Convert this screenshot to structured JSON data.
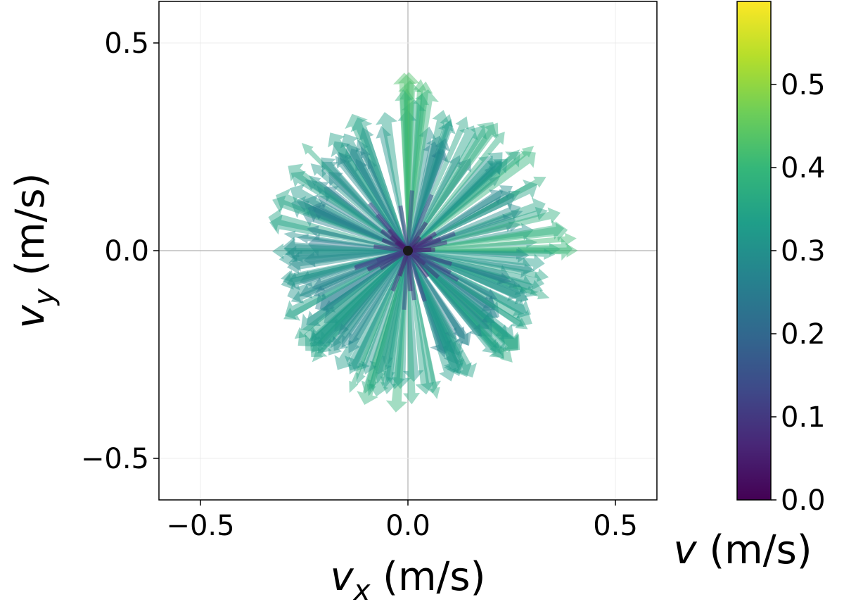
{
  "chart_data": {
    "type": "scatter",
    "title": "",
    "xlabel": {
      "base": "v",
      "sub": "x",
      "rest": " (m/s)"
    },
    "ylabel": {
      "base": "v",
      "sub": "y",
      "rest": " (m/s)"
    },
    "xlim": [
      -0.6,
      0.6
    ],
    "ylim": [
      -0.6,
      0.6
    ],
    "xticks": [
      {
        "value": -0.5,
        "label": "−0.5"
      },
      {
        "value": 0.0,
        "label": "0.0"
      },
      {
        "value": 0.5,
        "label": "0.5"
      }
    ],
    "yticks": [
      {
        "value": 0.5,
        "label": "0.5"
      },
      {
        "value": 0.0,
        "label": "0.0"
      },
      {
        "value": -0.5,
        "label": "−0.5"
      }
    ],
    "grid": true,
    "origin_marker": {
      "x": 0.0,
      "y": 0.0,
      "color": "#1a1a1a"
    },
    "colorbar": {
      "colormap": "viridis",
      "range": [
        0.0,
        0.6
      ],
      "ticks": [
        {
          "value": 0.0,
          "label": "0.0"
        },
        {
          "value": 0.1,
          "label": "0.1"
        },
        {
          "value": 0.2,
          "label": "0.2"
        },
        {
          "value": 0.3,
          "label": "0.3"
        },
        {
          "value": 0.4,
          "label": "0.4"
        },
        {
          "value": 0.5,
          "label": "0.5"
        }
      ],
      "label": {
        "base": "v",
        "rest": " (m/s)"
      },
      "stops": [
        "#440154",
        "#482777",
        "#3e4a89",
        "#31688e",
        "#26828e",
        "#1f9e89",
        "#35b779",
        "#6ece58",
        "#b5de2b",
        "#fde725"
      ]
    },
    "envelope": {
      "description": "radial extent of velocity vectors by angle (deg, magnitude m/s)",
      "angles": [
        0,
        15,
        30,
        45,
        60,
        75,
        90,
        105,
        120,
        135,
        150,
        165,
        180,
        195,
        210,
        225,
        240,
        255,
        270,
        285,
        300,
        315,
        330,
        345
      ],
      "radii": [
        0.4,
        0.36,
        0.36,
        0.4,
        0.35,
        0.36,
        0.43,
        0.35,
        0.33,
        0.36,
        0.34,
        0.35,
        0.33,
        0.32,
        0.33,
        0.34,
        0.36,
        0.37,
        0.38,
        0.36,
        0.33,
        0.36,
        0.34,
        0.35
      ]
    },
    "n_vectors": 240
  }
}
